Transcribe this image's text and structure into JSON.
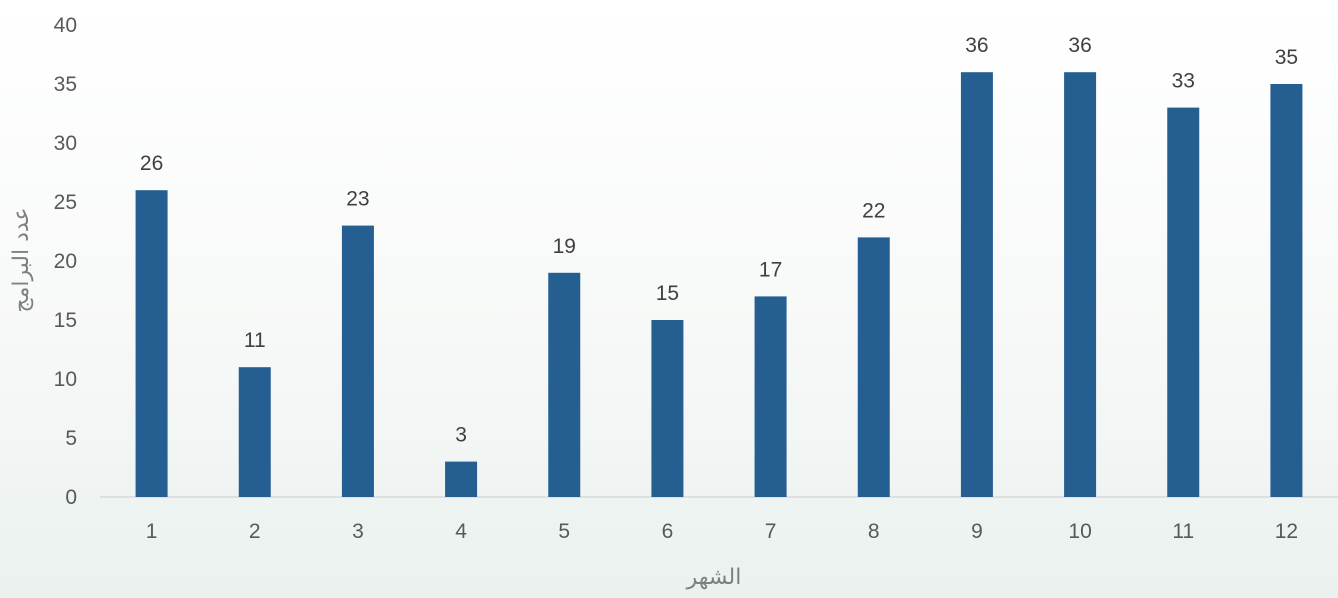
{
  "chart_data": {
    "type": "bar",
    "categories": [
      "1",
      "2",
      "3",
      "4",
      "5",
      "6",
      "7",
      "8",
      "9",
      "10",
      "11",
      "12"
    ],
    "values": [
      26,
      11,
      23,
      3,
      19,
      15,
      17,
      22,
      36,
      36,
      33,
      35
    ],
    "title": "",
    "xlabel": "الشهر",
    "ylabel": "عدد البرامج",
    "ylim": [
      0,
      40
    ],
    "yticks": [
      0,
      5,
      10,
      15,
      20,
      25,
      30,
      35,
      40
    ],
    "data_labels": true,
    "grid": false,
    "legend": "none",
    "colors": {
      "bar": "#255e91",
      "axis": "#d9d9d9"
    }
  }
}
